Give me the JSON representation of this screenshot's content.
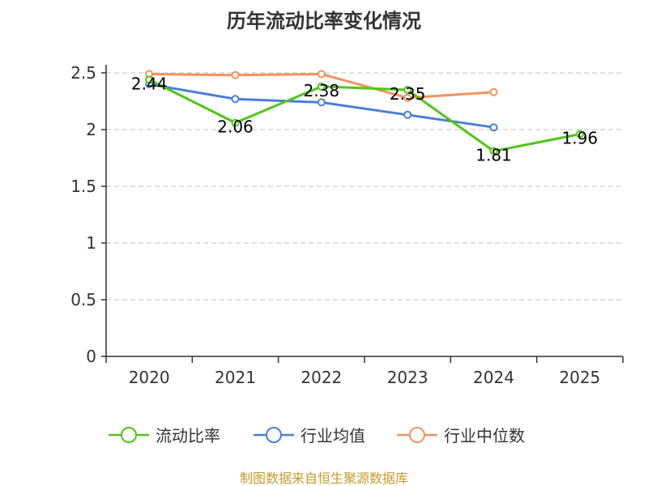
{
  "chart_data": {
    "type": "line",
    "title": "历年流动比率变化情况",
    "categories": [
      "2020",
      "2021",
      "2022",
      "2023",
      "2024",
      "2025"
    ],
    "ylim": [
      0,
      2.5
    ],
    "yticks": [
      "0",
      "0.5",
      "1",
      "1.5",
      "2",
      "2.5"
    ],
    "ytick_values": [
      0,
      0.5,
      1,
      1.5,
      2,
      2.5
    ],
    "grid": true,
    "legend_position": "bottom",
    "series": [
      {
        "name": "流动比率",
        "color": "#52c41a",
        "values": [
          2.44,
          2.06,
          2.38,
          2.35,
          1.81,
          1.96
        ],
        "labels": [
          "2.44",
          "2.06",
          "2.38",
          "2.35",
          "1.81",
          "1.96"
        ]
      },
      {
        "name": "行业均值",
        "color": "#4a7fd8",
        "values": [
          2.4,
          2.27,
          2.24,
          2.13,
          2.02,
          null
        ]
      },
      {
        "name": "行业中位数",
        "color": "#f5925e",
        "values": [
          2.49,
          2.48,
          2.49,
          2.28,
          2.33,
          null
        ]
      }
    ]
  },
  "source": {
    "text": "制图数据来自恒生聚源数据库",
    "color": "#c49a2a"
  }
}
